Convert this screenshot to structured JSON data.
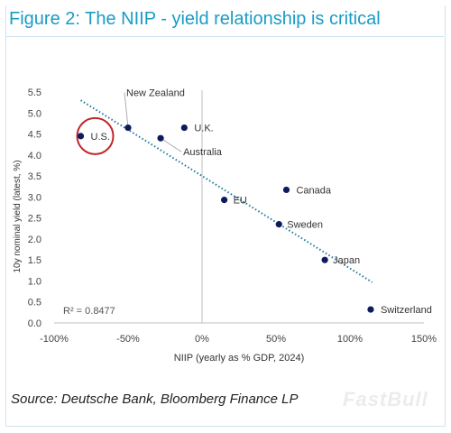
{
  "figure": {
    "title": "Figure 2: The NIIP - yield relationship is critical",
    "source": "Source: Deutsche Bank, Bloomberg Finance LP",
    "watermark": "FastBull"
  },
  "colors": {
    "title": "#1a9bc6",
    "point": "#0d1b5e",
    "trendline": "#1f7a9e",
    "highlight_circle": "#c0282d",
    "axis_text": "#444444"
  },
  "chart_data": {
    "type": "scatter",
    "xlabel": "NIIP (yearly as % GDP, 2024)",
    "ylabel": "10y nominal yield (latest, %)",
    "xlim": [
      -1.0,
      1.5
    ],
    "ylim": [
      0.0,
      5.5
    ],
    "x_ticks": [
      -1.0,
      -0.5,
      0.0,
      0.5,
      1.0,
      1.5
    ],
    "x_tick_labels": [
      "-100%",
      "-50%",
      "0%",
      "50%",
      "100%",
      "150%"
    ],
    "y_ticks": [
      0.0,
      0.5,
      1.0,
      1.5,
      2.0,
      2.5,
      3.0,
      3.5,
      4.0,
      4.5,
      5.0,
      5.5
    ],
    "y_tick_labels": [
      "0.0",
      "0.5",
      "1.0",
      "1.5",
      "2.0",
      "2.5",
      "3.0",
      "3.5",
      "4.0",
      "4.5",
      "5.0",
      "5.5"
    ],
    "grid": false,
    "r_squared_label": "R² = 0.8477",
    "trendline": {
      "style": "dotted",
      "x_start": -0.82,
      "x_end": 1.15,
      "slope": -2.2,
      "intercept": 3.5
    },
    "points": [
      {
        "label": "U.S.",
        "x": -0.82,
        "y": 4.45,
        "highlight": true
      },
      {
        "label": "New Zealand",
        "x": -0.5,
        "y": 4.65
      },
      {
        "label": "Australia",
        "x": -0.28,
        "y": 4.4
      },
      {
        "label": "U.K.",
        "x": -0.12,
        "y": 4.65
      },
      {
        "label": "EU",
        "x": 0.15,
        "y": 2.93
      },
      {
        "label": "Canada",
        "x": 0.57,
        "y": 3.17
      },
      {
        "label": "Sweden",
        "x": 0.52,
        "y": 2.35
      },
      {
        "label": "Japan",
        "x": 0.83,
        "y": 1.5
      },
      {
        "label": "Switzerland",
        "x": 1.14,
        "y": 0.32
      }
    ]
  }
}
